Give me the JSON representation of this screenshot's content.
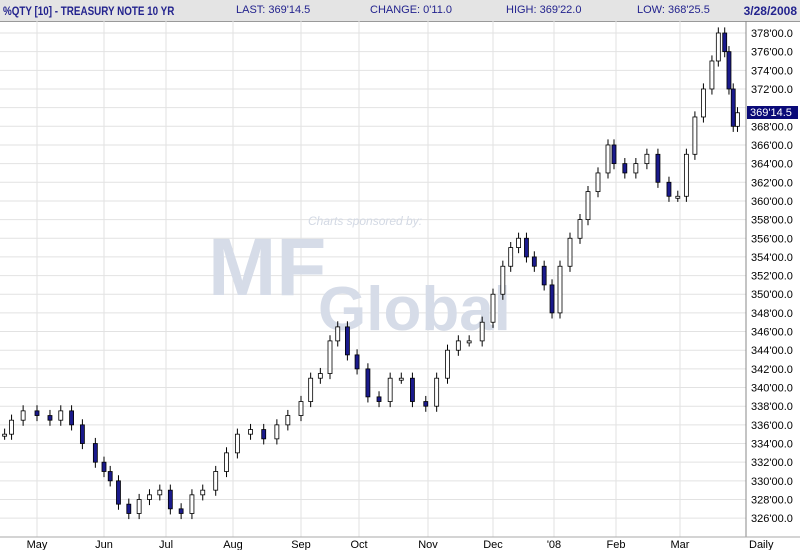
{
  "header": {
    "title": "%QTY [10] - TREASURY NOTE 10 YR",
    "last": "LAST: 369'14.5",
    "change": "CHANGE: 0'11.0",
    "high": "HIGH: 369'22.0",
    "low": "LOW: 368'25.5",
    "date": "3/28/2008"
  },
  "watermark": {
    "sponsor": "Charts sponsored by:",
    "brand_top": "MF",
    "brand_bottom": "Global"
  },
  "colors": {
    "header_text": "#23238e",
    "down_bar": "#1a1a8c",
    "up_bar": "#000000",
    "last_box": "#0a0a78"
  },
  "chart_data": {
    "type": "candlestick",
    "interval_label": "Daily",
    "last_value_label": "369'14.5",
    "ylim": [
      325,
      379.5
    ],
    "y_ticks": [
      "326'00.0",
      "328'00.0",
      "330'00.0",
      "332'00.0",
      "334'00.0",
      "336'00.0",
      "338'00.0",
      "340'00.0",
      "342'00.0",
      "344'00.0",
      "346'00.0",
      "348'00.0",
      "350'00.0",
      "352'00.0",
      "354'00.0",
      "356'00.0",
      "358'00.0",
      "360'00.0",
      "362'00.0",
      "364'00.0",
      "366'00.0",
      "368'00.0",
      "370'00.0",
      "372'00.0",
      "374'00.0",
      "376'00.0",
      "378'00.0"
    ],
    "y_tick_values": [
      326,
      328,
      330,
      332,
      334,
      336,
      338,
      340,
      342,
      344,
      346,
      348,
      350,
      352,
      354,
      356,
      358,
      360,
      362,
      364,
      366,
      368,
      370,
      372,
      374,
      376,
      378
    ],
    "x_ticks": [
      "May",
      "Jun",
      "Jul",
      "Aug",
      "Sep",
      "Oct",
      "Nov",
      "Dec",
      "'08",
      "Feb",
      "Mar"
    ],
    "series": [
      [
        "2007-04-17",
        335
      ],
      [
        "2007-04-20",
        336.5
      ],
      [
        "2007-04-25",
        337.5
      ],
      [
        "2007-05-01",
        337
      ],
      [
        "2007-05-07",
        336.5
      ],
      [
        "2007-05-12",
        337.5
      ],
      [
        "2007-05-17",
        336
      ],
      [
        "2007-05-22",
        334
      ],
      [
        "2007-05-28",
        332
      ],
      [
        "2007-06-01",
        331
      ],
      [
        "2007-06-04",
        330
      ],
      [
        "2007-06-08",
        327.5
      ],
      [
        "2007-06-13",
        326.5
      ],
      [
        "2007-06-18",
        328
      ],
      [
        "2007-06-23",
        328.5
      ],
      [
        "2007-06-28",
        329
      ],
      [
        "2007-07-03",
        327
      ],
      [
        "2007-07-08",
        326.5
      ],
      [
        "2007-07-13",
        328.5
      ],
      [
        "2007-07-18",
        329
      ],
      [
        "2007-07-24",
        331
      ],
      [
        "2007-07-29",
        333
      ],
      [
        "2007-08-03",
        335
      ],
      [
        "2007-08-09",
        335.5
      ],
      [
        "2007-08-15",
        334.5
      ],
      [
        "2007-08-21",
        336
      ],
      [
        "2007-08-26",
        337
      ],
      [
        "2007-09-01",
        338.5
      ],
      [
        "2007-09-06",
        341
      ],
      [
        "2007-09-11",
        341.5
      ],
      [
        "2007-09-16",
        345
      ],
      [
        "2007-09-20",
        346.5
      ],
      [
        "2007-09-25",
        343.5
      ],
      [
        "2007-09-30",
        342
      ],
      [
        "2007-10-05",
        339
      ],
      [
        "2007-10-10",
        338.5
      ],
      [
        "2007-10-15",
        341
      ],
      [
        "2007-10-20",
        341
      ],
      [
        "2007-10-25",
        338.5
      ],
      [
        "2007-10-31",
        338
      ],
      [
        "2007-11-05",
        341
      ],
      [
        "2007-11-10",
        344
      ],
      [
        "2007-11-15",
        345
      ],
      [
        "2007-11-20",
        345
      ],
      [
        "2007-11-26",
        347
      ],
      [
        "2007-12-01",
        350
      ],
      [
        "2007-12-06",
        353
      ],
      [
        "2007-12-10",
        355
      ],
      [
        "2007-12-14",
        356
      ],
      [
        "2007-12-18",
        354
      ],
      [
        "2007-12-22",
        353
      ],
      [
        "2007-12-27",
        351
      ],
      [
        "2007-12-31",
        348
      ],
      [
        "2008-01-04",
        353
      ],
      [
        "2008-01-09",
        356
      ],
      [
        "2008-01-14",
        358
      ],
      [
        "2008-01-18",
        361
      ],
      [
        "2008-01-23",
        363
      ],
      [
        "2008-01-28",
        366
      ],
      [
        "2008-01-31",
        364
      ],
      [
        "2008-02-05",
        363
      ],
      [
        "2008-02-10",
        364
      ],
      [
        "2008-02-15",
        365
      ],
      [
        "2008-02-20",
        362
      ],
      [
        "2008-02-25",
        360.5
      ],
      [
        "2008-02-29",
        360.5
      ],
      [
        "2008-03-04",
        365
      ],
      [
        "2008-03-08",
        369
      ],
      [
        "2008-03-12",
        372
      ],
      [
        "2008-03-16",
        375
      ],
      [
        "2008-03-19",
        378
      ],
      [
        "2008-03-22",
        376
      ],
      [
        "2008-03-24",
        372
      ],
      [
        "2008-03-26",
        368
      ],
      [
        "2008-03-28",
        369.45
      ]
    ]
  }
}
